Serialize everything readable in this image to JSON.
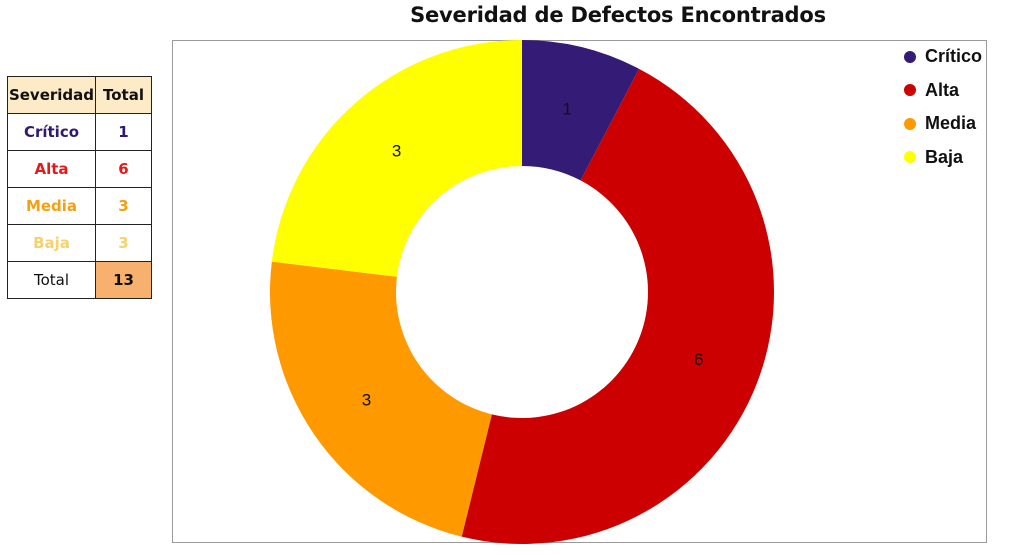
{
  "title": "Severidad de Defectos Encontrados",
  "table": {
    "headers": [
      "Severidad",
      "Total"
    ],
    "rows": [
      {
        "label": "Crítico",
        "value": "1",
        "color": "#2e1a6e"
      },
      {
        "label": "Alta",
        "value": "6",
        "color": "#e31a1a"
      },
      {
        "label": "Media",
        "value": "3",
        "color": "#f5a010"
      },
      {
        "label": "Baja",
        "value": "3",
        "color": "#f5d26a"
      }
    ],
    "total_label": "Total",
    "total_value": "13"
  },
  "chart_data": {
    "type": "pie",
    "variant": "donut",
    "title": "Severidad de Defectos Encontrados",
    "categories": [
      "Crítico",
      "Alta",
      "Media",
      "Baja"
    ],
    "values": [
      1,
      6,
      3,
      3
    ],
    "colors": [
      "#341c76",
      "#cc0000",
      "#ff9900",
      "#ffff00"
    ],
    "data_labels": [
      "1",
      "6",
      "3",
      "3"
    ],
    "legend_position": "top-right",
    "start_angle_deg": 0,
    "direction": "clockwise"
  }
}
